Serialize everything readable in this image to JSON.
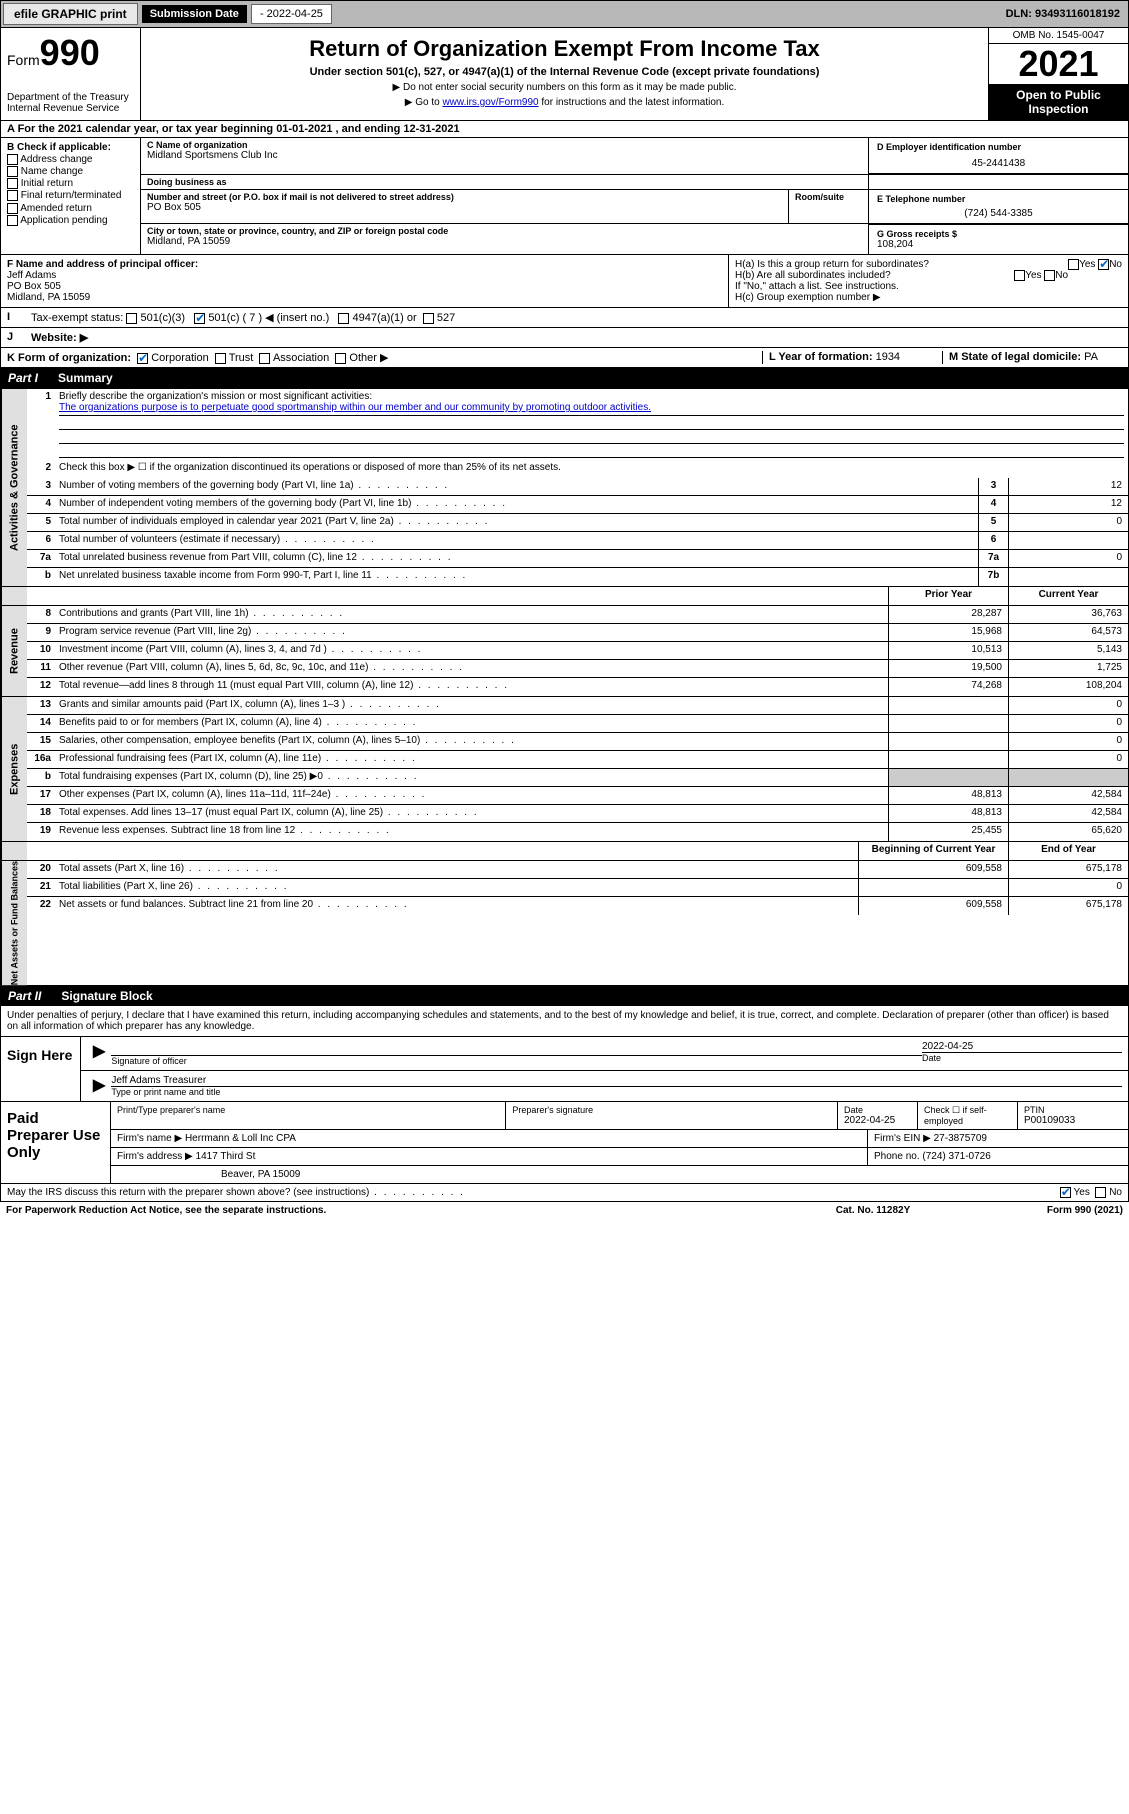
{
  "topbar": {
    "efile": "efile GRAPHIC print",
    "sub_label": "Submission Date",
    "sub_date": "- 2022-04-25",
    "dln_label": "DLN:",
    "dln": "93493116018192"
  },
  "header": {
    "form_word": "Form",
    "form_num": "990",
    "dept": "Department of the Treasury Internal Revenue Service",
    "title": "Return of Organization Exempt From Income Tax",
    "sub": "Under section 501(c), 527, or 4947(a)(1) of the Internal Revenue Code (except private foundations)",
    "note1": "▶ Do not enter social security numbers on this form as it may be made public.",
    "note2_pre": "▶ Go to ",
    "note2_link": "www.irs.gov/Form990",
    "note2_post": " for instructions and the latest information.",
    "omb": "OMB No. 1545-0047",
    "year": "2021",
    "inspection": "Open to Public Inspection"
  },
  "rowA": "A For the 2021 calendar year, or tax year beginning 01-01-2021   , and ending 12-31-2021",
  "colB": {
    "hdr": "B Check if applicable:",
    "items": [
      "Address change",
      "Name change",
      "Initial return",
      "Final return/terminated",
      "Amended return",
      "Application pending"
    ]
  },
  "colC": {
    "name_lbl": "C Name of organization",
    "name": "Midland Sportsmens Club Inc",
    "dba_lbl": "Doing business as",
    "dba": "",
    "addr_lbl": "Number and street (or P.O. box if mail is not delivered to street address)",
    "room_lbl": "Room/suite",
    "addr": "PO Box 505",
    "city_lbl": "City or town, state or province, country, and ZIP or foreign postal code",
    "city": "Midland, PA  15059"
  },
  "colD": {
    "ein_lbl": "D Employer identification number",
    "ein": "45-2441438",
    "tel_lbl": "E Telephone number",
    "tel": "(724) 544-3385",
    "gross_lbl": "G Gross receipts $",
    "gross": "108,204"
  },
  "rowF": {
    "lbl": "F Name and address of principal officer:",
    "name": "Jeff Adams",
    "addr1": "PO Box 505",
    "addr2": "Midland, PA  15059"
  },
  "rowH": {
    "ha": "H(a)  Is this a group return for subordinates?",
    "hb": "H(b)  Are all subordinates included?",
    "hb_note": "If \"No,\" attach a list. See instructions.",
    "hc": "H(c)  Group exemption number ▶",
    "yes": "Yes",
    "no": "No"
  },
  "rowI": {
    "lbl": "Tax-exempt status:",
    "o1": "501(c)(3)",
    "o2": "501(c) ( 7 ) ◀ (insert no.)",
    "o3": "4947(a)(1) or",
    "o4": "527"
  },
  "rowJ": {
    "lbl": "Website: ▶"
  },
  "rowK": {
    "lbl": "K Form of organization:",
    "o1": "Corporation",
    "o2": "Trust",
    "o3": "Association",
    "o4": "Other ▶",
    "L_lbl": "L Year of formation:",
    "L_val": "1934",
    "M_lbl": "M State of legal domicile:",
    "M_val": "PA"
  },
  "part1": {
    "pn": "Part I",
    "title": "Summary"
  },
  "sect_gov": {
    "label": "Activities & Governance",
    "r1_num": "1",
    "r1": "Briefly describe the organization's mission or most significant activities:",
    "mission": "The organizations purpose is to perpetuate good sportmanship within our member and our community by promoting outdoor activities.",
    "r2_num": "2",
    "r2": "Check this box ▶ ☐  if the organization discontinued its operations or disposed of more than 25% of its net assets.",
    "rows": [
      {
        "n": "3",
        "d": "Number of voting members of the governing body (Part VI, line 1a)",
        "b": "3",
        "v": "12"
      },
      {
        "n": "4",
        "d": "Number of independent voting members of the governing body (Part VI, line 1b)",
        "b": "4",
        "v": "12"
      },
      {
        "n": "5",
        "d": "Total number of individuals employed in calendar year 2021 (Part V, line 2a)",
        "b": "5",
        "v": "0"
      },
      {
        "n": "6",
        "d": "Total number of volunteers (estimate if necessary)",
        "b": "6",
        "v": ""
      },
      {
        "n": "7a",
        "d": "Total unrelated business revenue from Part VIII, column (C), line 12",
        "b": "7a",
        "v": "0"
      },
      {
        "n": "b",
        "d": "Net unrelated business taxable income from Form 990-T, Part I, line 11",
        "b": "7b",
        "v": ""
      }
    ]
  },
  "twocol_hdr": {
    "prior": "Prior Year",
    "current": "Current Year"
  },
  "sect_rev": {
    "label": "Revenue",
    "rows": [
      {
        "n": "8",
        "d": "Contributions and grants (Part VIII, line 1h)",
        "p": "28,287",
        "c": "36,763"
      },
      {
        "n": "9",
        "d": "Program service revenue (Part VIII, line 2g)",
        "p": "15,968",
        "c": "64,573"
      },
      {
        "n": "10",
        "d": "Investment income (Part VIII, column (A), lines 3, 4, and 7d )",
        "p": "10,513",
        "c": "5,143"
      },
      {
        "n": "11",
        "d": "Other revenue (Part VIII, column (A), lines 5, 6d, 8c, 9c, 10c, and 11e)",
        "p": "19,500",
        "c": "1,725"
      },
      {
        "n": "12",
        "d": "Total revenue—add lines 8 through 11 (must equal Part VIII, column (A), line 12)",
        "p": "74,268",
        "c": "108,204"
      }
    ]
  },
  "sect_exp": {
    "label": "Expenses",
    "rows": [
      {
        "n": "13",
        "d": "Grants and similar amounts paid (Part IX, column (A), lines 1–3 )",
        "p": "",
        "c": "0"
      },
      {
        "n": "14",
        "d": "Benefits paid to or for members (Part IX, column (A), line 4)",
        "p": "",
        "c": "0"
      },
      {
        "n": "15",
        "d": "Salaries, other compensation, employee benefits (Part IX, column (A), lines 5–10)",
        "p": "",
        "c": "0"
      },
      {
        "n": "16a",
        "d": "Professional fundraising fees (Part IX, column (A), line 11e)",
        "p": "",
        "c": "0"
      },
      {
        "n": "b",
        "d": "Total fundraising expenses (Part IX, column (D), line 25) ▶0",
        "p": "shade",
        "c": "shade"
      },
      {
        "n": "17",
        "d": "Other expenses (Part IX, column (A), lines 11a–11d, 11f–24e)",
        "p": "48,813",
        "c": "42,584"
      },
      {
        "n": "18",
        "d": "Total expenses. Add lines 13–17 (must equal Part IX, column (A), line 25)",
        "p": "48,813",
        "c": "42,584"
      },
      {
        "n": "19",
        "d": "Revenue less expenses. Subtract line 18 from line 12",
        "p": "25,455",
        "c": "65,620"
      }
    ]
  },
  "twocol_hdr2": {
    "prior": "Beginning of Current Year",
    "current": "End of Year"
  },
  "sect_net": {
    "label": "Net Assets or Fund Balances",
    "rows": [
      {
        "n": "20",
        "d": "Total assets (Part X, line 16)",
        "p": "609,558",
        "c": "675,178"
      },
      {
        "n": "21",
        "d": "Total liabilities (Part X, line 26)",
        "p": "",
        "c": "0"
      },
      {
        "n": "22",
        "d": "Net assets or fund balances. Subtract line 21 from line 20",
        "p": "609,558",
        "c": "675,178"
      }
    ]
  },
  "part2": {
    "pn": "Part II",
    "title": "Signature Block"
  },
  "sig_decl": "Under penalties of perjury, I declare that I have examined this return, including accompanying schedules and statements, and to the best of my knowledge and belief, it is true, correct, and complete. Declaration of preparer (other than officer) is based on all information of which preparer has any knowledge.",
  "sign": {
    "left": "Sign Here",
    "sig_lbl": "Signature of officer",
    "date_lbl": "Date",
    "date": "2022-04-25",
    "name": "Jeff Adams Treasurer",
    "name_lbl": "Type or print name and title"
  },
  "prep": {
    "left": "Paid Preparer Use Only",
    "h_name": "Print/Type preparer's name",
    "h_sig": "Preparer's signature",
    "h_date": "Date",
    "date": "2022-04-25",
    "check_lbl": "Check ☐ if self-employed",
    "ptin_lbl": "PTIN",
    "ptin": "P00109033",
    "firm_name_lbl": "Firm's name   ▶",
    "firm_name": "Herrmann & Loll Inc CPA",
    "firm_ein_lbl": "Firm's EIN ▶",
    "firm_ein": "27-3875709",
    "firm_addr_lbl": "Firm's address ▶",
    "firm_addr1": "1417 Third St",
    "firm_addr2": "Beaver, PA  15009",
    "phone_lbl": "Phone no.",
    "phone": "(724) 371-0726"
  },
  "footer": {
    "discuss": "May the IRS discuss this return with the preparer shown above? (see instructions)",
    "yes": "Yes",
    "no": "No",
    "pra": "For Paperwork Reduction Act Notice, see the separate instructions.",
    "cat": "Cat. No. 11282Y",
    "form": "Form 990 (2021)"
  }
}
